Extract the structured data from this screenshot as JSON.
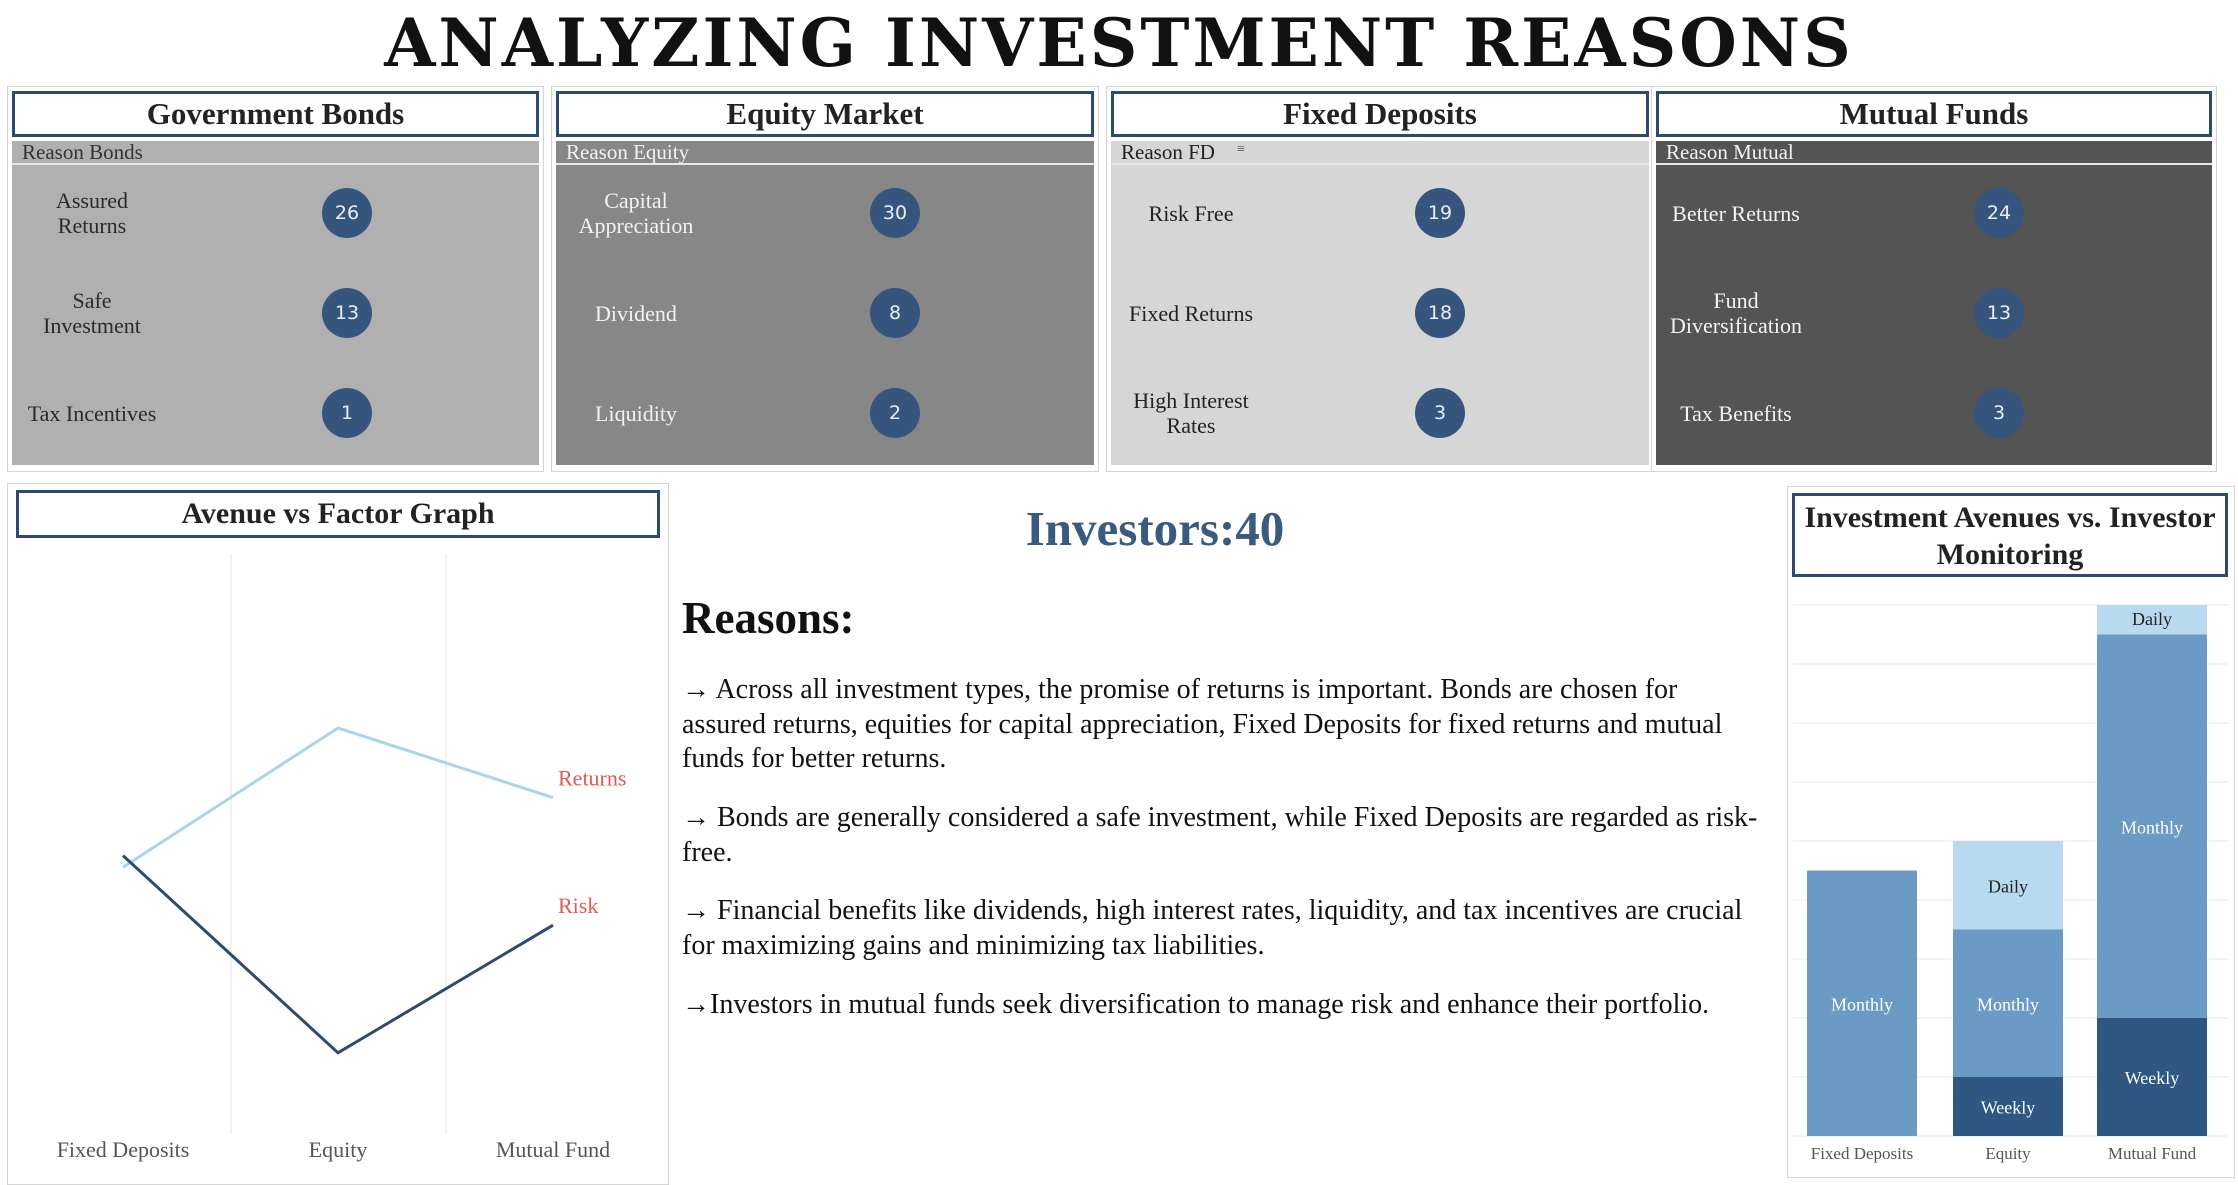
{
  "title": "ANALYZING INVESTMENT REASONS",
  "cards": [
    {
      "title": "Government Bonds",
      "header": "Reason Bonds",
      "bg": "#b0b0b0",
      "text_color": "#2a2a2a",
      "header_color": "#333333",
      "rows": [
        {
          "label": "Assured Returns",
          "lines": [
            "Assured",
            "Returns"
          ],
          "count": "26"
        },
        {
          "label": "Safe Investment",
          "lines": [
            "Safe",
            "Investment"
          ],
          "count": "13"
        },
        {
          "label": "Tax Incentives",
          "lines": [
            "Tax Incentives"
          ],
          "count": "1"
        }
      ]
    },
    {
      "title": "Equity Market",
      "header": "Reason Equity",
      "bg": "#878787",
      "text_color": "#f2f2f2",
      "header_color": "#f2f2f2",
      "rows": [
        {
          "label": "Capital Appreciation",
          "lines": [
            "Capital",
            "Appreciation"
          ],
          "count": "30"
        },
        {
          "label": "Dividend",
          "lines": [
            "Dividend"
          ],
          "count": "8"
        },
        {
          "label": "Liquidity",
          "lines": [
            "Liquidity"
          ],
          "count": "2"
        }
      ]
    },
    {
      "title": "Fixed Deposits",
      "header": "Reason FD",
      "bg": "#d6d6d6",
      "text_color": "#222222",
      "header_color": "#222222",
      "rows": [
        {
          "label": "Risk Free",
          "lines": [
            "Risk Free"
          ],
          "count": "19"
        },
        {
          "label": "Fixed Returns",
          "lines": [
            "Fixed Returns"
          ],
          "count": "18"
        },
        {
          "label": "High Interest Rates",
          "lines": [
            "High Interest",
            "Rates"
          ],
          "count": "3"
        }
      ]
    },
    {
      "title": "Mutual Funds",
      "header": "Reason Mutual",
      "bg": "#545454",
      "text_color": "#f2f2f2",
      "header_color": "#f2f2f2",
      "rows": [
        {
          "label": "Better Returns",
          "lines": [
            "Better Returns"
          ],
          "count": "24"
        },
        {
          "label": "Fund Diversification",
          "lines": [
            "Fund",
            "Diversification"
          ],
          "count": "13"
        },
        {
          "label": "Tax Benefits",
          "lines": [
            "Tax Benefits"
          ],
          "count": "3"
        }
      ]
    }
  ],
  "investors_text": "Investors:40",
  "reasons_heading": "Reasons:",
  "reasons": [
    "→ Across all investment types, the promise of returns is important. Bonds are chosen for assured returns, equities for capital appreciation, Fixed Deposits for fixed returns and mutual funds for better returns.",
    "→ Bonds are generally considered a safe investment, while Fixed Deposits are regarded as risk-free.",
    "→ Financial benefits like dividends, high interest rates, liquidity, and tax incentives are crucial for maximizing gains and minimizing tax liabilities.",
    "→Investors in mutual funds seek diversification to manage risk and enhance their portfolio."
  ],
  "line_title": "Avenue vs Factor Graph",
  "bar_title": "Investment Avenues vs. Investor Monitoring",
  "chart_data": [
    {
      "type": "line",
      "title": "Avenue vs Factor Graph",
      "categories": [
        "Fixed Deposits",
        "Equity",
        "Mutual Fund"
      ],
      "series": [
        {
          "name": "Returns",
          "values": [
            18,
            30,
            24
          ],
          "color": "#a9d4ea"
        },
        {
          "name": "Risk",
          "values": [
            19,
            2,
            13
          ],
          "color": "#2f4a6e"
        }
      ],
      "ylim": [
        -5,
        45
      ],
      "grid": true,
      "label_color": "#e05a5a"
    },
    {
      "type": "bar",
      "stacked": true,
      "title": "Investment Avenues vs. Investor Monitoring",
      "categories": [
        "Fixed Deposits",
        "Equity",
        "Mutual Fund"
      ],
      "series": [
        {
          "name": "Weekly",
          "values": [
            0,
            6,
            12
          ],
          "color": "#2e5782"
        },
        {
          "name": "Monthly",
          "values": [
            27,
            15,
            39
          ],
          "color": "#6b9ac4"
        },
        {
          "name": "Daily",
          "values": [
            0,
            9,
            3
          ],
          "color": "#b7daee"
        }
      ],
      "ylim": [
        0,
        54
      ],
      "grid": true
    }
  ]
}
